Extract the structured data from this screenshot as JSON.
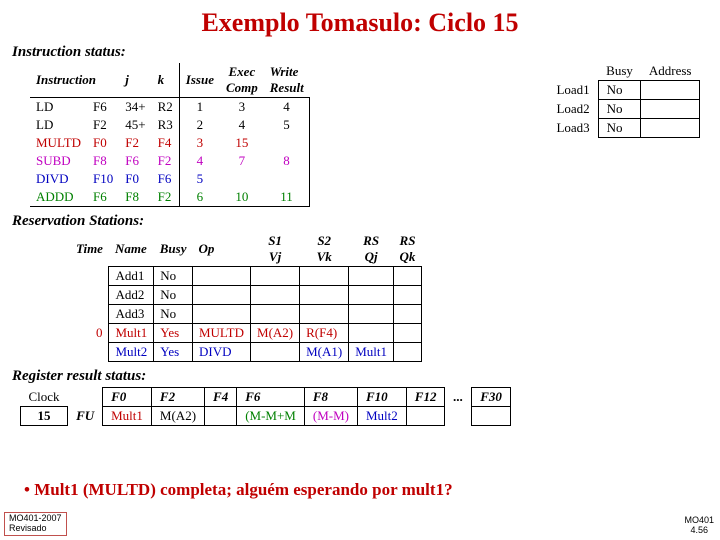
{
  "title": "Exemplo Tomasulo: Ciclo 15",
  "title_color": "#c00000",
  "instruction_status": {
    "label": "Instruction status:",
    "headers": [
      "Instruction",
      "j",
      "k",
      "Issue",
      "Exec Comp",
      "Write Result"
    ],
    "rows": [
      {
        "instr": "LD",
        "dest": "F6",
        "j": "34+",
        "k": "R2",
        "issue": "1",
        "exec": "3",
        "write": "4",
        "color": "#000000"
      },
      {
        "instr": "LD",
        "dest": "F2",
        "j": "45+",
        "k": "R3",
        "issue": "2",
        "exec": "4",
        "write": "5",
        "color": "#000000"
      },
      {
        "instr": "MULTD",
        "dest": "F0",
        "j": "F2",
        "k": "F4",
        "issue": "3",
        "exec": "15",
        "write": "",
        "color": "#c00000"
      },
      {
        "instr": "SUBD",
        "dest": "F8",
        "j": "F6",
        "k": "F2",
        "issue": "4",
        "exec": "7",
        "write": "8",
        "color": "#c000c0"
      },
      {
        "instr": "DIVD",
        "dest": "F10",
        "j": "F0",
        "k": "F6",
        "issue": "5",
        "exec": "",
        "write": "",
        "color": "#0000c0"
      },
      {
        "instr": "ADDD",
        "dest": "F6",
        "j": "F8",
        "k": "F2",
        "issue": "6",
        "exec": "10",
        "write": "11",
        "color": "#008000"
      }
    ]
  },
  "load_status": {
    "headers": [
      "",
      "Busy",
      "Address"
    ],
    "rows": [
      {
        "name": "Load1",
        "busy": "No",
        "addr": ""
      },
      {
        "name": "Load2",
        "busy": "No",
        "addr": ""
      },
      {
        "name": "Load3",
        "busy": "No",
        "addr": ""
      }
    ]
  },
  "reservation_stations": {
    "label": "Reservation Stations:",
    "headers": [
      "Time",
      "Name",
      "Busy",
      "Op",
      "S1 Vj",
      "S2 Vk",
      "RS Qj",
      "RS Qk"
    ],
    "rows": [
      {
        "time": "",
        "name": "Add1",
        "busy": "No",
        "op": "",
        "vj": "",
        "vk": "",
        "qj": "",
        "qk": "",
        "color": "#000000"
      },
      {
        "time": "",
        "name": "Add2",
        "busy": "No",
        "op": "",
        "vj": "",
        "vk": "",
        "qj": "",
        "qk": "",
        "color": "#000000"
      },
      {
        "time": "",
        "name": "Add3",
        "busy": "No",
        "op": "",
        "vj": "",
        "vk": "",
        "qj": "",
        "qk": "",
        "color": "#000000"
      },
      {
        "time": "0",
        "name": "Mult1",
        "busy": "Yes",
        "op": "MULTD",
        "vj": "M(A2)",
        "vk": "R(F4)",
        "qj": "",
        "qk": "",
        "color": "#c00000"
      },
      {
        "time": "",
        "name": "Mult2",
        "busy": "Yes",
        "op": "DIVD",
        "vj": "",
        "vk": "M(A1)",
        "qj": "Mult1",
        "qk": "",
        "color": "#0000c0"
      }
    ]
  },
  "register_status": {
    "label": "Register result status:",
    "clock_label": "Clock",
    "clock_value": "15",
    "fu_label": "FU",
    "regs": [
      "F0",
      "F2",
      "F4",
      "F6",
      "F8",
      "F10",
      "F12",
      "...",
      "F30"
    ],
    "values": [
      {
        "t": "Mult1",
        "c": "#c00000"
      },
      {
        "t": "M(A2)",
        "c": "#000000"
      },
      {
        "t": "",
        "c": "#000000"
      },
      {
        "t": "(M-M+M",
        "c": "#008000"
      },
      {
        "t": "(M-M)",
        "c": "#c000c0"
      },
      {
        "t": "Mult2",
        "c": "#0000c0"
      },
      {
        "t": "",
        "c": "#000000"
      },
      {
        "t": "",
        "c": "#000000"
      },
      {
        "t": "",
        "c": "#000000"
      }
    ]
  },
  "bullet": "• Mult1 (MULTD) completa; alguém esperando por mult1?",
  "bullet_color": "#c00000",
  "footer_left_1": "MO401-2007",
  "footer_left_2": "Revisado",
  "footer_right_1": "MO401",
  "footer_right_2": "4.56"
}
